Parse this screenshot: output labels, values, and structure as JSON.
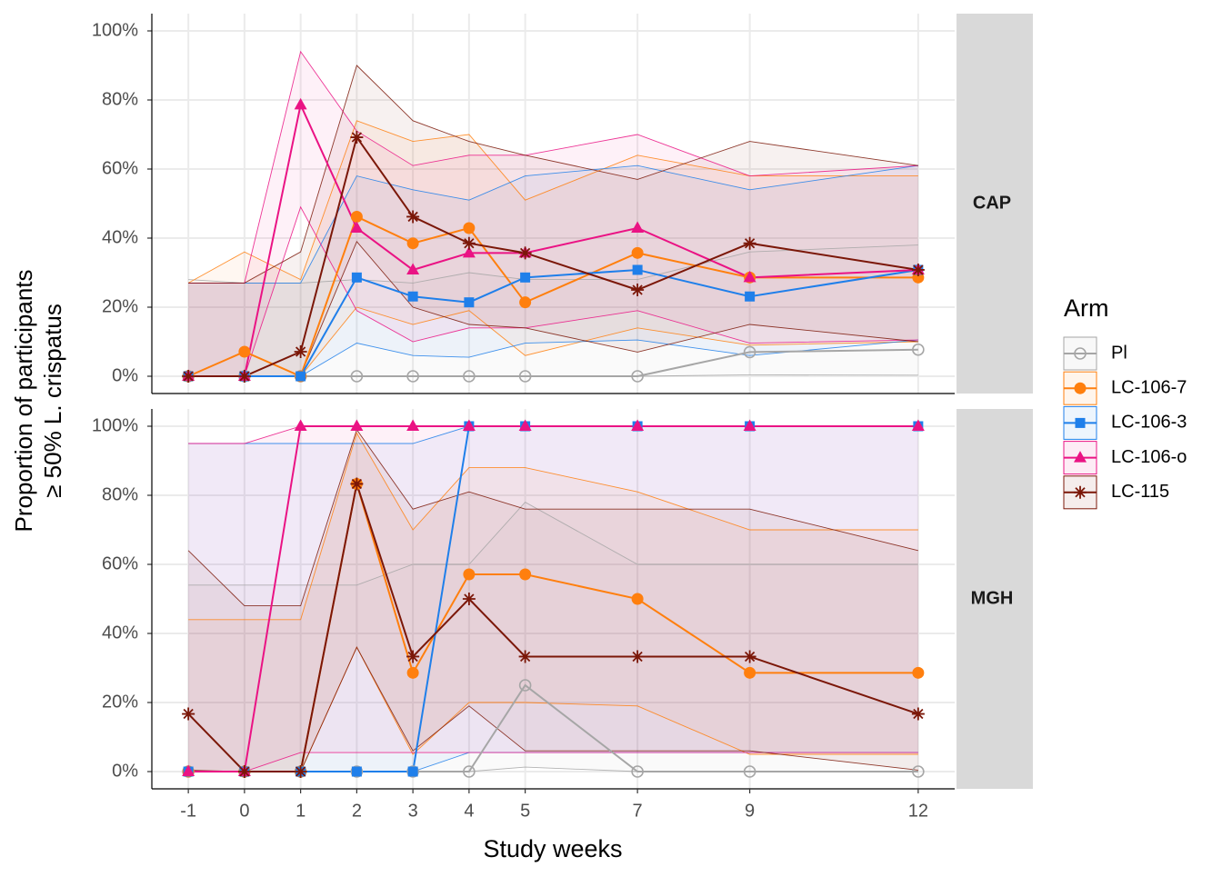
{
  "chart_data": {
    "type": "line",
    "x_label": "Study weeks",
    "y_label": [
      "Proportion of participants",
      "≥ 50% L. crispatus"
    ],
    "legend_title": "Arm",
    "x": [
      -1,
      0,
      1,
      2,
      3,
      4,
      5,
      7,
      9,
      12
    ],
    "xlim": [
      -1.65,
      12.65
    ],
    "xticks": [
      -1,
      0,
      1,
      2,
      3,
      4,
      5,
      7,
      9,
      12
    ],
    "ylim": [
      -5,
      105
    ],
    "yticks": [
      {
        "value": 0,
        "label": "0%"
      },
      {
        "value": 20,
        "label": "20%"
      },
      {
        "value": 40,
        "label": "40%"
      },
      {
        "value": 60,
        "label": "60%"
      },
      {
        "value": 80,
        "label": "80%"
      },
      {
        "value": 100,
        "label": "100%"
      }
    ],
    "grid": true,
    "series": [
      {
        "name": "Pl",
        "color": "#a6a6a6",
        "marker": "open-circle"
      },
      {
        "name": "LC-106-7",
        "color": "#ff7f0e",
        "marker": "circle"
      },
      {
        "name": "LC-106-3",
        "color": "#1f7fea",
        "marker": "square"
      },
      {
        "name": "LC-106-o",
        "color": "#ea1384",
        "marker": "triangle"
      },
      {
        "name": "LC-115",
        "color": "#7b1708",
        "marker": "asterisk"
      }
    ],
    "facets": [
      {
        "label": "CAP",
        "series": [
          {
            "values": [
              0,
              0,
              0,
              0,
              0,
              0,
              0,
              0,
              7,
              7.7
            ],
            "lower": [
              0,
              0,
              0,
              0,
              0,
              0,
              0,
              0,
              0.4,
              0.3
            ],
            "upper": [
              28,
              27,
              27,
              28,
              27,
              30,
              28,
              28,
              36,
              38
            ]
          },
          {
            "values": [
              0,
              7.1,
              0,
              46.2,
              38.5,
              42.9,
              21.4,
              35.7,
              28.6,
              28.6
            ],
            "lower": [
              0,
              0.2,
              0,
              20,
              15,
              19,
              6,
              14,
              9,
              10
            ],
            "upper": [
              27,
              36,
              28,
              74,
              68,
              70,
              51,
              64,
              58,
              58
            ]
          },
          {
            "values": [
              0,
              0,
              0,
              28.6,
              23.1,
              21.4,
              28.6,
              30.8,
              23.1,
              30.8
            ],
            "lower": [
              0,
              0,
              0,
              9.6,
              6,
              5.5,
              9.6,
              10.5,
              6,
              10.5
            ],
            "upper": [
              27,
              27,
              27,
              58,
              54,
              51,
              58,
              61,
              54,
              61
            ]
          },
          {
            "values": [
              0,
              0,
              78.6,
              42.9,
              30.8,
              35.7,
              35.7,
              42.9,
              28.6,
              30.8
            ],
            "lower": [
              0,
              0,
              49,
              19,
              10,
              14,
              14,
              19,
              9.6,
              10.5
            ],
            "upper": [
              27,
              27,
              94,
              71,
              61,
              64,
              64,
              70,
              58,
              61
            ]
          },
          {
            "values": [
              0,
              0,
              7.1,
              69.2,
              46.2,
              38.5,
              35.7,
              25,
              38.5,
              30.8
            ],
            "lower": [
              0,
              0,
              0.2,
              39,
              20,
              15,
              14,
              7,
              15,
              10
            ],
            "upper": [
              27,
              27,
              36,
              90,
              74,
              68,
              64,
              57,
              68,
              61
            ]
          }
        ]
      },
      {
        "label": "MGH",
        "series": [
          {
            "values": [
              0,
              0,
              0,
              0,
              0,
              0,
              25,
              0,
              0,
              0
            ],
            "lower": [
              0,
              0,
              0,
              0,
              0,
              0,
              1.3,
              0,
              0,
              0
            ],
            "upper": [
              54,
              54,
              54,
              54,
              60,
              60,
              78,
              60,
              60,
              60
            ]
          },
          {
            "values": [
              0,
              0,
              0,
              83.3,
              28.6,
              57.1,
              57.1,
              50,
              28.6,
              28.6
            ],
            "lower": [
              0,
              0,
              0,
              36,
              5,
              20,
              20,
              19,
              5,
              5
            ],
            "upper": [
              44,
              44,
              44,
              98,
              70,
              88,
              88,
              81,
              70,
              70
            ]
          },
          {
            "values": [
              0,
              0,
              0,
              0,
              0,
              100,
              100,
              100,
              100,
              100
            ],
            "lower": [
              0,
              0,
              0,
              0,
              0,
              5.5,
              5.5,
              5.5,
              5.5,
              5.5
            ],
            "upper": [
              95,
              95,
              95,
              95,
              95,
              100,
              100,
              100,
              100,
              100
            ]
          },
          {
            "values": [
              0,
              0,
              100,
              100,
              100,
              100,
              100,
              100,
              100,
              100
            ],
            "lower": [
              0,
              0,
              5.5,
              5.5,
              5.5,
              5.5,
              5.5,
              5.5,
              5.5,
              5.5
            ],
            "upper": [
              95,
              95,
              100,
              100,
              100,
              100,
              100,
              100,
              100,
              100
            ]
          },
          {
            "values": [
              16.7,
              0,
              0,
              83.3,
              33.3,
              50,
              33.3,
              33.3,
              33.3,
              16.7
            ],
            "lower": [
              0.4,
              0,
              0,
              36,
              6,
              19,
              6,
              6,
              6,
              0.4
            ],
            "upper": [
              64,
              48,
              48,
              99,
              76,
              81,
              76,
              76,
              76,
              64
            ]
          }
        ]
      }
    ]
  }
}
